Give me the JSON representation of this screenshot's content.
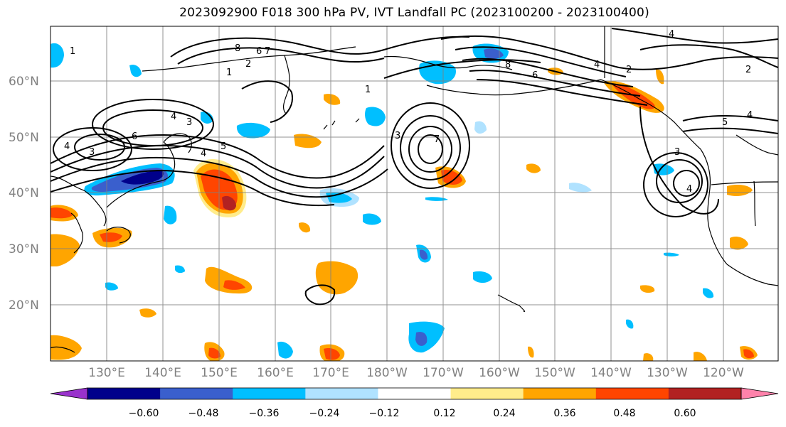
{
  "title": "2023092900 F018 300 hPa PV, IVT Landfall PC (2023100200 - 2023100400)",
  "lat_labels": [
    "60°N",
    "50°N",
    "40°N",
    "30°N",
    "20°N"
  ],
  "lon_labels": [
    "130°E",
    "140°E",
    "150°E",
    "160°E",
    "170°E",
    "180°W",
    "170°W",
    "160°W",
    "150°W",
    "140°W",
    "130°W",
    "120°W"
  ],
  "colorbar": {
    "ticks": [
      "−0.60",
      "−0.48",
      "−0.36",
      "−0.24",
      "−0.12",
      "0.12",
      "0.24",
      "0.36",
      "0.48",
      "0.60"
    ],
    "colors": [
      "#9932cc",
      "#00008b",
      "#3a5fcd",
      "#00bfff",
      "#b0e2ff",
      "#ffffff",
      "#ffec8b",
      "#ffa500",
      "#ff4500",
      "#b22222",
      "#ff82ab"
    ]
  },
  "contour_labels": [
    "1",
    "2",
    "3",
    "4",
    "5",
    "6",
    "7",
    "8"
  ]
}
